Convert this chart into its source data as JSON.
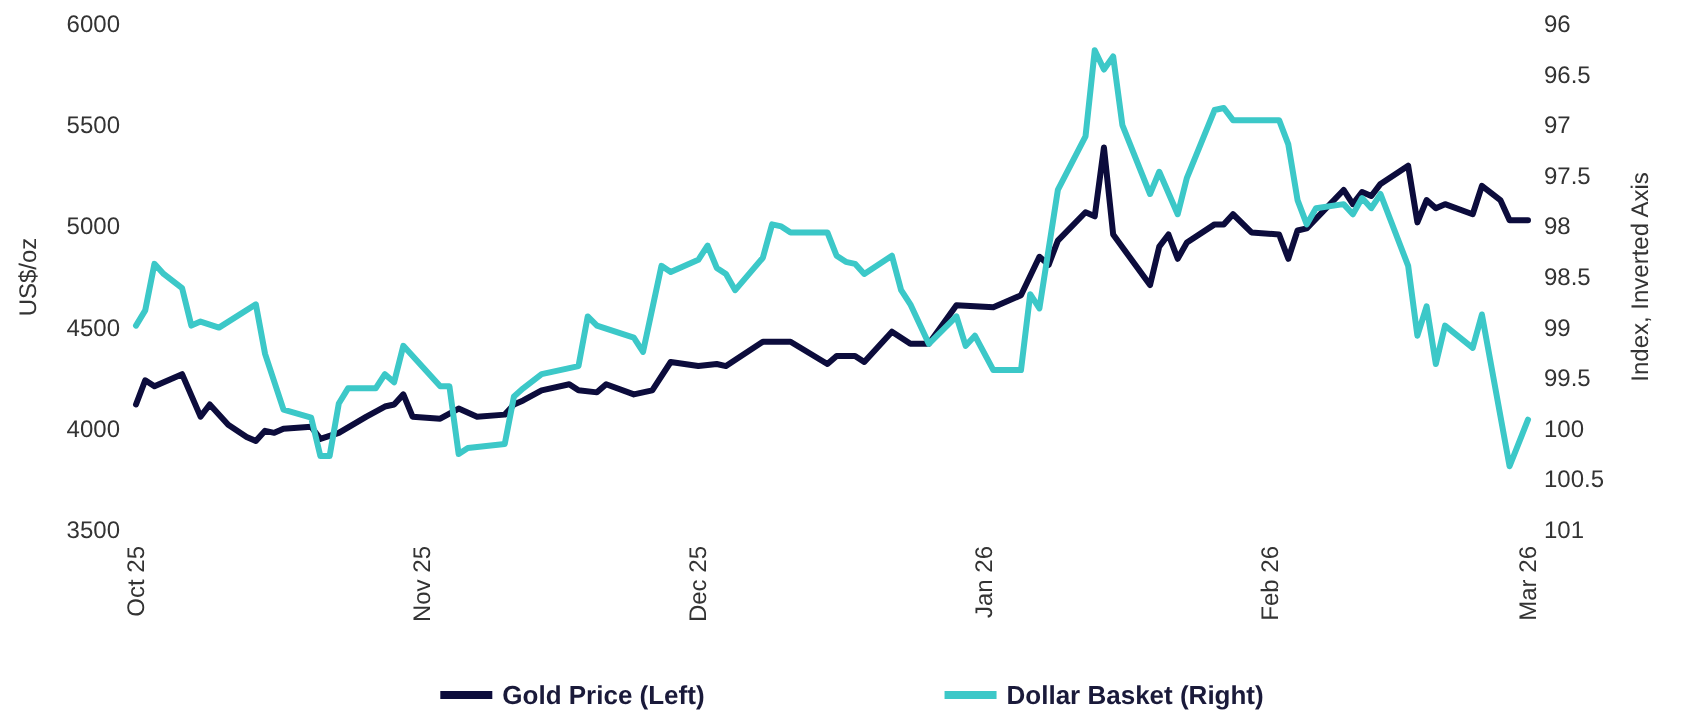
{
  "chart_data": {
    "type": "line",
    "ylabel": "US$/oz",
    "y2label": "Index, Inverted Axis",
    "xlim": [
      "2025-10-01",
      "2026-03-01"
    ],
    "xticks": [
      {
        "value": "2025-10-01",
        "label": "Oct 25"
      },
      {
        "value": "2025-11-01",
        "label": "Nov 25"
      },
      {
        "value": "2025-12-01",
        "label": "Dec 25"
      },
      {
        "value": "2026-01-01",
        "label": "Jan 26"
      },
      {
        "value": "2026-02-01",
        "label": "Feb 26"
      },
      {
        "value": "2026-03-01",
        "label": "Mar 26"
      }
    ],
    "ylim": [
      3500,
      6000
    ],
    "yticks": [
      3500,
      4000,
      4500,
      5000,
      5500,
      6000
    ],
    "y2lim": [
      101,
      96
    ],
    "y2ticks": [
      96,
      96.5,
      97,
      97.5,
      98,
      98.5,
      99,
      99.5,
      100,
      100.5,
      101
    ],
    "grid": false,
    "legend": "bottom",
    "marker": "none",
    "line_style": "solid",
    "series": [
      {
        "name": "Gold Price (Left)",
        "color": "#0c0c3c",
        "x": [
          "2025-10-01",
          "2025-10-02",
          "2025-10-03",
          "2025-10-06",
          "2025-10-08",
          "2025-10-09",
          "2025-10-11",
          "2025-10-13",
          "2025-10-14",
          "2025-10-15",
          "2025-10-16",
          "2025-10-17",
          "2025-10-20",
          "2025-10-21",
          "2025-10-23",
          "2025-10-26",
          "2025-10-28",
          "2025-10-29",
          "2025-10-30",
          "2025-10-31",
          "2025-11-03",
          "2025-11-05",
          "2025-11-07",
          "2025-11-10",
          "2025-11-11",
          "2025-11-12",
          "2025-11-14",
          "2025-11-17",
          "2025-11-18",
          "2025-11-20",
          "2025-11-21",
          "2025-11-24",
          "2025-11-26",
          "2025-11-28",
          "2025-12-01",
          "2025-12-03",
          "2025-12-04",
          "2025-12-08",
          "2025-12-11",
          "2025-12-15",
          "2025-12-16",
          "2025-12-18",
          "2025-12-19",
          "2025-12-22",
          "2025-12-24",
          "2025-12-26",
          "2025-12-29",
          "2026-01-02",
          "2026-01-05",
          "2026-01-07",
          "2026-01-08",
          "2026-01-09",
          "2026-01-12",
          "2026-01-13",
          "2026-01-14",
          "2026-01-15",
          "2026-01-19",
          "2026-01-20",
          "2026-01-21",
          "2026-01-22",
          "2026-01-23",
          "2026-01-26",
          "2026-01-27",
          "2026-01-28",
          "2026-01-30",
          "2026-02-02",
          "2026-02-03",
          "2026-02-04",
          "2026-02-05",
          "2026-02-09",
          "2026-02-10",
          "2026-02-11",
          "2026-02-12",
          "2026-02-13",
          "2026-02-16",
          "2026-02-17",
          "2026-02-18",
          "2026-02-19",
          "2026-02-20",
          "2026-02-23",
          "2026-02-24",
          "2026-02-26",
          "2026-02-27",
          "2026-03-01"
        ],
        "values": [
          4120,
          4240,
          4210,
          4270,
          4060,
          4120,
          4020,
          3960,
          3940,
          3990,
          3980,
          4000,
          4010,
          3950,
          3980,
          4060,
          4110,
          4120,
          4170,
          4060,
          4050,
          4100,
          4060,
          4070,
          4120,
          4140,
          4190,
          4220,
          4190,
          4180,
          4220,
          4170,
          4190,
          4330,
          4310,
          4320,
          4310,
          4430,
          4430,
          4320,
          4360,
          4360,
          4330,
          4480,
          4420,
          4420,
          4610,
          4600,
          4660,
          4850,
          4810,
          4930,
          5070,
          5050,
          5390,
          4960,
          4710,
          4900,
          4960,
          4840,
          4920,
          5010,
          5010,
          5060,
          4970,
          4960,
          4840,
          4980,
          4990,
          5180,
          5110,
          5170,
          5150,
          5210,
          5300,
          5020,
          5130,
          5090,
          5110,
          5060,
          5200,
          5130,
          5030,
          5030
        ]
      },
      {
        "name": "Dollar Basket (Right)",
        "color": "#3cc8c8",
        "axis": "y2",
        "x": [
          "2025-10-01",
          "2025-10-02",
          "2025-10-03",
          "2025-10-04",
          "2025-10-06",
          "2025-10-07",
          "2025-10-08",
          "2025-10-10",
          "2025-10-14",
          "2025-10-15",
          "2025-10-17",
          "2025-10-20",
          "2025-10-21",
          "2025-10-22",
          "2025-10-23",
          "2025-10-24",
          "2025-10-27",
          "2025-10-28",
          "2025-10-29",
          "2025-10-30",
          "2025-11-03",
          "2025-11-04",
          "2025-11-05",
          "2025-11-06",
          "2025-11-10",
          "2025-11-11",
          "2025-11-12",
          "2025-11-14",
          "2025-11-18",
          "2025-11-19",
          "2025-11-20",
          "2025-11-24",
          "2025-11-25",
          "2025-11-27",
          "2025-11-28",
          "2025-12-01",
          "2025-12-02",
          "2025-12-03",
          "2025-12-04",
          "2025-12-05",
          "2025-12-08",
          "2025-12-09",
          "2025-12-10",
          "2025-12-11",
          "2025-12-15",
          "2025-12-16",
          "2025-12-17",
          "2025-12-18",
          "2025-12-19",
          "2025-12-22",
          "2025-12-23",
          "2025-12-24",
          "2025-12-26",
          "2025-12-29",
          "2025-12-30",
          "2025-12-31",
          "2026-01-02",
          "2026-01-05",
          "2026-01-06",
          "2026-01-07",
          "2026-01-09",
          "2026-01-12",
          "2026-01-13",
          "2026-01-14",
          "2026-01-15",
          "2026-01-16",
          "2026-01-19",
          "2026-01-20",
          "2026-01-22",
          "2026-01-23",
          "2026-01-26",
          "2026-01-27",
          "2026-01-28",
          "2026-02-02",
          "2026-02-03",
          "2026-02-04",
          "2026-02-05",
          "2026-02-06",
          "2026-02-09",
          "2026-02-10",
          "2026-02-11",
          "2026-02-12",
          "2026-02-13",
          "2026-02-16",
          "2026-02-17",
          "2026-02-18",
          "2026-02-19",
          "2026-02-20",
          "2026-02-23",
          "2026-02-24",
          "2026-02-27",
          "2026-03-01"
        ],
        "values": [
          98.98,
          98.83,
          98.37,
          98.47,
          98.61,
          98.98,
          98.94,
          99.0,
          98.77,
          99.26,
          99.81,
          99.89,
          100.27,
          100.27,
          99.75,
          99.6,
          99.6,
          99.46,
          99.54,
          99.18,
          99.58,
          99.58,
          100.25,
          100.19,
          100.15,
          99.68,
          99.6,
          99.46,
          99.38,
          98.89,
          98.98,
          99.1,
          99.24,
          98.39,
          98.45,
          98.33,
          98.19,
          98.41,
          98.47,
          98.63,
          98.31,
          97.98,
          98.0,
          98.06,
          98.06,
          98.29,
          98.35,
          98.37,
          98.47,
          98.29,
          98.63,
          98.77,
          99.16,
          98.89,
          99.18,
          99.08,
          99.42,
          99.42,
          98.67,
          98.81,
          97.64,
          97.11,
          96.26,
          96.45,
          96.32,
          97.0,
          97.68,
          97.46,
          97.88,
          97.52,
          96.85,
          96.83,
          96.95,
          96.95,
          97.19,
          97.74,
          97.98,
          97.82,
          97.78,
          97.88,
          97.72,
          97.82,
          97.68,
          98.39,
          99.08,
          98.79,
          99.36,
          98.98,
          99.2,
          98.87,
          100.37,
          99.91
        ]
      }
    ]
  }
}
